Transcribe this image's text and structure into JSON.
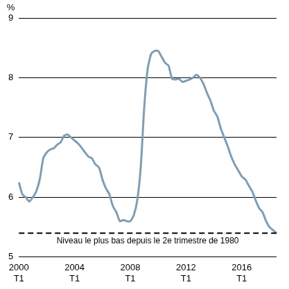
{
  "chart_data": {
    "type": "line",
    "ylabel": "%",
    "categories": [
      "2000 T1",
      null,
      null,
      null,
      null,
      null,
      null,
      null,
      null,
      null,
      null,
      null,
      null,
      null,
      null,
      null,
      "2004 T1",
      null,
      null,
      null,
      null,
      null,
      null,
      null,
      null,
      null,
      null,
      null,
      null,
      null,
      null,
      null,
      "2008 T1",
      null,
      null,
      null,
      null,
      null,
      null,
      null,
      null,
      null,
      null,
      null,
      null,
      null,
      null,
      null,
      "2012 T1",
      null,
      null,
      null,
      null,
      null,
      null,
      null,
      null,
      null,
      null,
      null,
      null,
      null,
      null,
      null,
      "2016 T1",
      null,
      null,
      null,
      null,
      null,
      null,
      null,
      null,
      null,
      null
    ],
    "values": [
      6.25,
      6.05,
      6.0,
      5.93,
      6.0,
      6.1,
      6.3,
      6.65,
      6.75,
      6.8,
      6.82,
      6.88,
      6.92,
      7.03,
      7.05,
      7.0,
      6.95,
      6.9,
      6.83,
      6.75,
      6.68,
      6.65,
      6.55,
      6.5,
      6.3,
      6.15,
      6.05,
      5.85,
      5.75,
      5.6,
      5.62,
      5.6,
      5.6,
      5.7,
      5.95,
      6.5,
      7.5,
      8.15,
      8.4,
      8.45,
      8.45,
      8.35,
      8.25,
      8.2,
      7.98,
      7.97,
      7.98,
      7.93,
      7.95,
      7.97,
      8.0,
      8.05,
      8.0,
      7.9,
      7.75,
      7.62,
      7.45,
      7.35,
      7.15,
      7.0,
      6.85,
      6.68,
      6.55,
      6.45,
      6.35,
      6.3,
      6.2,
      6.1,
      5.95,
      5.82,
      5.75,
      5.6,
      5.5,
      5.45,
      5.4
    ],
    "color": "#7f9db3",
    "ylim": [
      5,
      9
    ],
    "yticks": [
      5,
      6,
      7,
      8,
      9
    ],
    "grid": true,
    "reference_line": {
      "value": 5.4,
      "label": "Niveau le plus bas depuis le 2e trimestre de 1980",
      "line_style": "dashed",
      "color": "#000000"
    }
  }
}
